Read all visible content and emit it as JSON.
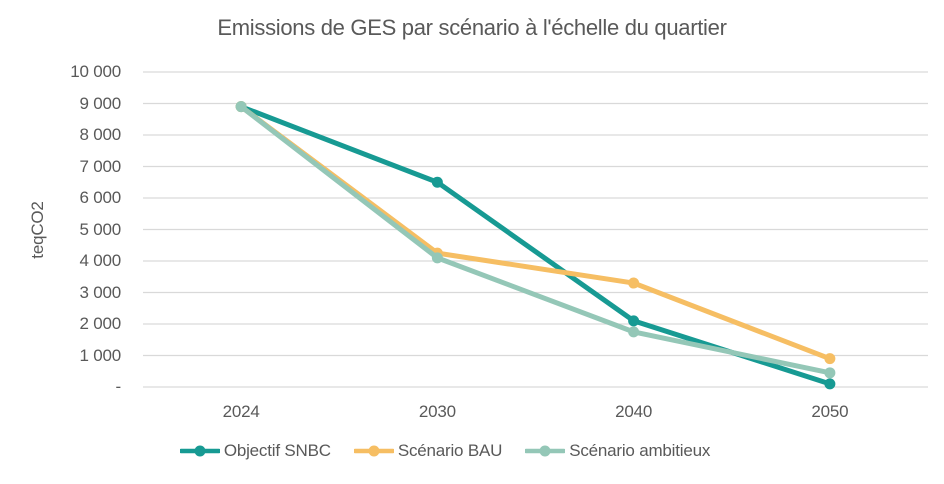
{
  "chart_data": {
    "type": "line",
    "title": "Emissions de GES par scénario à l'échelle du quartier",
    "ylabel": "teqCO2",
    "xlabel": "",
    "categories": [
      "2024",
      "2030",
      "2040",
      "2050"
    ],
    "series": [
      {
        "name": "Objectif SNBC",
        "color": "#179A93",
        "values": [
          8900,
          6500,
          2100,
          100
        ]
      },
      {
        "name": "Scénario BAU",
        "color": "#F6BE63",
        "values": [
          8900,
          4250,
          3300,
          900
        ]
      },
      {
        "name": "Scénario ambitieux",
        "color": "#94C7B7",
        "values": [
          8900,
          4100,
          1750,
          450
        ]
      }
    ],
    "ylim": [
      0,
      10000
    ],
    "y_ticks": [
      {
        "value": 10000,
        "label": "10 000"
      },
      {
        "value": 9000,
        "label": "9 000"
      },
      {
        "value": 8000,
        "label": "8 000"
      },
      {
        "value": 7000,
        "label": "7 000"
      },
      {
        "value": 6000,
        "label": "6 000"
      },
      {
        "value": 5000,
        "label": "5 000"
      },
      {
        "value": 4000,
        "label": "4 000"
      },
      {
        "value": 3000,
        "label": "3 000"
      },
      {
        "value": 2000,
        "label": "2 000"
      },
      {
        "value": 1000,
        "label": "1 000"
      },
      {
        "value": 0,
        "label": "-"
      }
    ],
    "grid": true,
    "grid_color": "#D9D9D9",
    "text_color": "#595959",
    "background_color": "#FFFFFF",
    "legend_position": "bottom"
  }
}
